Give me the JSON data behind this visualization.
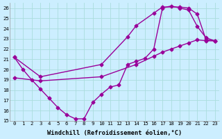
{
  "x_full": [
    0,
    1,
    2,
    3,
    4,
    5,
    6,
    7,
    8,
    9,
    10,
    11,
    12,
    13,
    14,
    15,
    16,
    17,
    18,
    19,
    20,
    21,
    22,
    23
  ],
  "line1": [
    21.2,
    20.0,
    19.0,
    18.1,
    17.2,
    16.3,
    15.6,
    15.2,
    15.2,
    16.8,
    17.6,
    18.3,
    18.5,
    20.5,
    20.8,
    21.1,
    22.0,
    26.0,
    26.2,
    26.0,
    25.8,
    24.2,
    23.1,
    22.8
  ],
  "line2_x": [
    0,
    3,
    10,
    14,
    16,
    17,
    18,
    19,
    20,
    21,
    22,
    23
  ],
  "line2_y": [
    19.2,
    18.9,
    19.3,
    20.5,
    21.3,
    21.7,
    22.0,
    22.3,
    22.6,
    22.9,
    22.8,
    22.8
  ],
  "line3_x": [
    0,
    3,
    10,
    13,
    14,
    16,
    17,
    19,
    20,
    21,
    22,
    23
  ],
  "line3_y": [
    21.2,
    19.3,
    20.5,
    23.2,
    24.3,
    25.5,
    26.1,
    26.1,
    26.0,
    25.4,
    22.9,
    22.8
  ],
  "color": "#990099",
  "bg_color": "#cceeff",
  "grid_color": "#aadddd",
  "ylim": [
    15,
    26.5
  ],
  "xlim": [
    -0.5,
    23.5
  ],
  "yticks": [
    15,
    16,
    17,
    18,
    19,
    20,
    21,
    22,
    23,
    24,
    25,
    26
  ],
  "xticks": [
    0,
    1,
    2,
    3,
    4,
    5,
    6,
    7,
    8,
    9,
    10,
    11,
    12,
    13,
    14,
    15,
    16,
    17,
    18,
    19,
    20,
    21,
    22,
    23
  ],
  "xlabel": "Windchill (Refroidissement éolien,°C)",
  "marker": "D",
  "markersize": 2.5,
  "linewidth": 1.0,
  "tick_fontsize": 5.2,
  "label_fontsize": 6.2
}
